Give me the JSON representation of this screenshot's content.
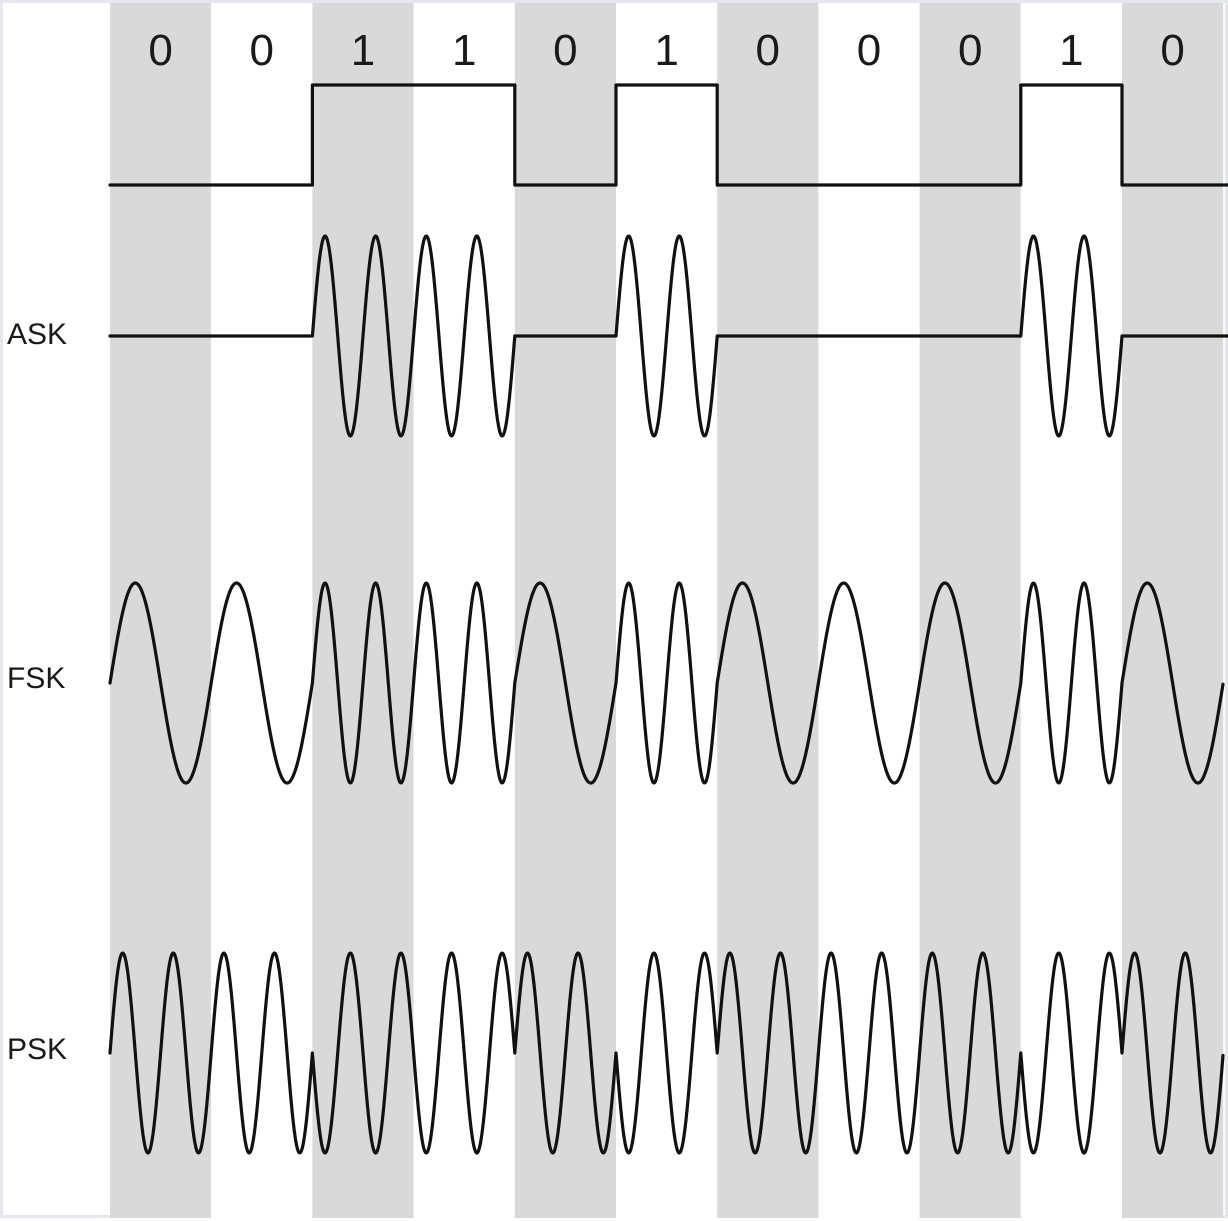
{
  "bits": [
    "0",
    "0",
    "1",
    "1",
    "0",
    "1",
    "0",
    "0",
    "0",
    "1",
    "0"
  ],
  "rows": [
    {
      "id": "ask",
      "label": "ASK"
    },
    {
      "id": "fsk",
      "label": "FSK"
    },
    {
      "id": "psk",
      "label": "PSK"
    }
  ],
  "colors": {
    "stripe": "#d9d9d9",
    "background": "#ffffff",
    "line": "#111111"
  },
  "carrier": {
    "cycles_per_bit_high": 2,
    "cycles_per_bit_low": 1
  }
}
